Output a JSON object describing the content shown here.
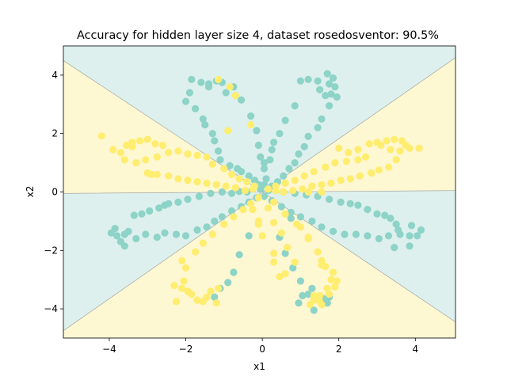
{
  "chart_data": {
    "type": "scatter",
    "title": "Accuracy for hidden layer size 4, dataset rosedosventor: 90.5%",
    "xlabel": "x1",
    "ylabel": "x2",
    "xlim": [
      -5.2,
      5.05
    ],
    "ylim": [
      -5.0,
      5.0
    ],
    "xticks": [
      -4,
      -2,
      0,
      2,
      4
    ],
    "yticks": [
      -4,
      -2,
      0,
      2,
      4
    ],
    "grid": false,
    "legend": "none",
    "colors": {
      "class_0": "#8dd3c7",
      "class_1": "#ffed6f",
      "region_0": "#ddf0ee",
      "region_1": "#fdf7d2",
      "boundary": "#999999"
    },
    "decision_regions": [
      {
        "class": 1,
        "polygon": [
          [
            -5.2,
            4.5
          ],
          [
            0,
            0
          ],
          [
            -5.2,
            -0.05
          ]
        ]
      },
      {
        "class": 1,
        "polygon": [
          [
            0,
            0
          ],
          [
            5.05,
            4.6
          ],
          [
            5.05,
            0.05
          ]
        ]
      },
      {
        "class": 1,
        "polygon": [
          [
            0,
            0
          ],
          [
            -5.2,
            -4.75
          ],
          [
            -5.2,
            -5.0
          ],
          [
            5.05,
            -5.0
          ],
          [
            5.05,
            -4.45
          ]
        ]
      }
    ],
    "series": [
      {
        "class": 0,
        "color": "#8dd3c7",
        "points": [
          [
            -1.85,
            3.85
          ],
          [
            -1.6,
            3.75
          ],
          [
            -1.4,
            3.7
          ],
          [
            -1.2,
            3.8
          ],
          [
            -1.05,
            3.75
          ],
          [
            -0.75,
            3.6
          ],
          [
            -0.95,
            3.4
          ],
          [
            -0.7,
            3.3
          ],
          [
            -1.4,
            3.6
          ],
          [
            -1.9,
            3.4
          ],
          [
            -2.0,
            3.1
          ],
          [
            -1.75,
            2.85
          ],
          [
            -1.55,
            2.5
          ],
          [
            -1.5,
            2.3
          ],
          [
            -1.3,
            2.0
          ],
          [
            -1.25,
            1.75
          ],
          [
            -1.15,
            1.4
          ],
          [
            -1.1,
            1.1
          ],
          [
            -0.85,
            0.9
          ],
          [
            -0.65,
            0.8
          ],
          [
            -0.55,
            0.7
          ],
          [
            -0.35,
            0.55
          ],
          [
            -0.2,
            0.4
          ],
          [
            -0.1,
            0.25
          ],
          [
            -0.05,
            0.1
          ],
          [
            -0.55,
            3.15
          ],
          [
            -0.3,
            2.6
          ],
          [
            -0.15,
            2.1
          ],
          [
            -0.1,
            1.6
          ],
          [
            -0.05,
            1.2
          ],
          [
            0.05,
            0.8
          ],
          [
            0.1,
            0.45
          ],
          [
            0.05,
            0.25
          ],
          [
            0.05,
            1.0
          ],
          [
            1.0,
            3.8
          ],
          [
            1.2,
            3.85
          ],
          [
            1.45,
            3.8
          ],
          [
            1.75,
            3.7
          ],
          [
            1.5,
            3.5
          ],
          [
            1.65,
            3.3
          ],
          [
            1.8,
            3.35
          ],
          [
            1.7,
            4.05
          ],
          [
            1.85,
            3.9
          ],
          [
            1.9,
            3.6
          ],
          [
            1.95,
            3.25
          ],
          [
            1.75,
            2.95
          ],
          [
            1.55,
            2.5
          ],
          [
            1.45,
            2.2
          ],
          [
            1.2,
            1.9
          ],
          [
            1.1,
            1.55
          ],
          [
            0.95,
            1.3
          ],
          [
            0.85,
            1.0
          ],
          [
            0.7,
            0.8
          ],
          [
            0.55,
            0.55
          ],
          [
            0.4,
            0.35
          ],
          [
            0.25,
            0.2
          ],
          [
            0.15,
            0.05
          ],
          [
            0.85,
            2.95
          ],
          [
            0.6,
            2.45
          ],
          [
            0.45,
            2.0
          ],
          [
            0.3,
            1.7
          ],
          [
            0.25,
            1.45
          ],
          [
            0.2,
            1.1
          ],
          [
            -3.8,
            -1.5
          ],
          [
            -3.6,
            -1.45
          ],
          [
            -3.5,
            -1.35
          ],
          [
            -3.7,
            -1.7
          ],
          [
            -3.6,
            -1.85
          ],
          [
            -3.3,
            -1.6
          ],
          [
            -3.05,
            -1.45
          ],
          [
            -2.75,
            -1.55
          ],
          [
            -2.55,
            -1.4
          ],
          [
            -2.25,
            -1.45
          ],
          [
            -2.0,
            -1.5
          ],
          [
            -1.7,
            -1.3
          ],
          [
            -1.45,
            -1.2
          ],
          [
            -1.25,
            -1.0
          ],
          [
            -1.05,
            -0.85
          ],
          [
            -0.8,
            -0.65
          ],
          [
            -0.55,
            -0.5
          ],
          [
            -0.35,
            -0.35
          ],
          [
            -0.15,
            -0.2
          ],
          [
            -3.35,
            -0.8
          ],
          [
            -3.15,
            -0.75
          ],
          [
            -2.95,
            -0.65
          ],
          [
            -2.7,
            -0.55
          ],
          [
            -2.55,
            -0.45
          ],
          [
            -2.45,
            -0.4
          ],
          [
            -2.2,
            -0.35
          ],
          [
            -1.95,
            -0.25
          ],
          [
            -1.65,
            -0.15
          ],
          [
            -1.35,
            -0.05
          ],
          [
            -1.05,
            0.0
          ],
          [
            -0.8,
            -0.05
          ],
          [
            -0.6,
            0.02
          ],
          [
            -0.4,
            0.0
          ],
          [
            -3.85,
            -1.25
          ],
          [
            -3.95,
            -1.4
          ],
          [
            3.0,
            -0.75
          ],
          [
            3.2,
            -0.8
          ],
          [
            3.35,
            -0.9
          ],
          [
            3.5,
            -1.1
          ],
          [
            3.55,
            -1.3
          ],
          [
            3.6,
            -1.45
          ],
          [
            3.85,
            -1.5
          ],
          [
            4.05,
            -1.5
          ],
          [
            4.15,
            -1.3
          ],
          [
            3.9,
            -1.15
          ],
          [
            3.3,
            -1.5
          ],
          [
            3.05,
            -1.6
          ],
          [
            2.75,
            -1.5
          ],
          [
            2.45,
            -1.45
          ],
          [
            2.15,
            -1.45
          ],
          [
            1.85,
            -1.35
          ],
          [
            1.55,
            -1.2
          ],
          [
            1.3,
            -1.0
          ],
          [
            1.0,
            -0.85
          ],
          [
            0.75,
            -0.7
          ],
          [
            0.5,
            -0.5
          ],
          [
            0.25,
            -0.3
          ],
          [
            0.05,
            -0.15
          ],
          [
            2.75,
            -0.6
          ],
          [
            2.5,
            -0.45
          ],
          [
            2.3,
            -0.4
          ],
          [
            2.05,
            -0.35
          ],
          [
            1.75,
            -0.25
          ],
          [
            1.45,
            -0.15
          ],
          [
            1.15,
            -0.1
          ],
          [
            0.85,
            -0.05
          ],
          [
            0.55,
            0.0
          ],
          [
            3.45,
            -1.9
          ],
          [
            3.85,
            -1.85
          ],
          [
            -0.35,
            -1.5
          ],
          [
            -0.6,
            -2.15
          ],
          [
            -0.75,
            -2.75
          ],
          [
            -0.9,
            -3.1
          ],
          [
            -1.1,
            -3.3
          ],
          [
            -1.25,
            -3.6
          ],
          [
            0.75,
            -0.9
          ],
          [
            0.45,
            -1.55
          ],
          [
            0.6,
            -2.1
          ],
          [
            0.8,
            -2.6
          ],
          [
            1.0,
            -3.05
          ],
          [
            1.2,
            -3.5
          ],
          [
            1.6,
            -3.65
          ],
          [
            1.7,
            -3.8
          ],
          [
            1.35,
            -4.05
          ],
          [
            0.95,
            -3.8
          ],
          [
            1.05,
            -3.55
          ],
          [
            1.75,
            -3.6
          ],
          [
            1.3,
            -3.3
          ]
        ]
      },
      {
        "class": 1,
        "color": "#ffed6f",
        "points": [
          [
            -4.2,
            1.92
          ],
          [
            -3.9,
            1.45
          ],
          [
            -3.7,
            1.35
          ],
          [
            -3.55,
            1.6
          ],
          [
            -3.4,
            1.7
          ],
          [
            -3.2,
            1.75
          ],
          [
            -3.0,
            1.8
          ],
          [
            -2.8,
            1.65
          ],
          [
            -2.6,
            1.6
          ],
          [
            -3.6,
            1.1
          ],
          [
            -3.3,
            1.0
          ],
          [
            -3.05,
            1.1
          ],
          [
            -2.75,
            1.2
          ],
          [
            -2.45,
            1.35
          ],
          [
            -2.2,
            1.4
          ],
          [
            -1.95,
            1.3
          ],
          [
            -1.7,
            1.25
          ],
          [
            -1.45,
            1.2
          ],
          [
            -1.3,
            0.95
          ],
          [
            -1.0,
            0.8
          ],
          [
            -0.8,
            0.6
          ],
          [
            -0.6,
            0.45
          ],
          [
            -0.4,
            0.35
          ],
          [
            -0.2,
            0.2
          ],
          [
            -3.0,
            0.65
          ],
          [
            -2.75,
            0.6
          ],
          [
            -2.45,
            0.55
          ],
          [
            -2.2,
            0.45
          ],
          [
            -1.95,
            0.4
          ],
          [
            -1.7,
            0.35
          ],
          [
            -1.45,
            0.3
          ],
          [
            -1.2,
            0.25
          ],
          [
            -0.95,
            0.2
          ],
          [
            -0.7,
            0.15
          ],
          [
            -0.45,
            0.05
          ],
          [
            -0.25,
            0.1
          ],
          [
            -0.9,
            2.1
          ],
          [
            -0.3,
            2.3
          ],
          [
            -3.4,
            1.55
          ],
          [
            -2.9,
            0.6
          ],
          [
            -1.15,
            3.85
          ],
          [
            -0.85,
            3.6
          ],
          [
            -0.7,
            3.3
          ],
          [
            2.0,
            1.5
          ],
          [
            2.25,
            1.35
          ],
          [
            2.5,
            1.45
          ],
          [
            2.8,
            1.65
          ],
          [
            3.0,
            1.7
          ],
          [
            3.25,
            1.75
          ],
          [
            3.45,
            1.8
          ],
          [
            3.65,
            1.75
          ],
          [
            3.85,
            1.5
          ],
          [
            4.1,
            1.5
          ],
          [
            3.6,
            1.4
          ],
          [
            3.35,
            1.45
          ],
          [
            3.1,
            1.6
          ],
          [
            2.7,
            1.2
          ],
          [
            2.5,
            1.1
          ],
          [
            2.2,
            1.05
          ],
          [
            1.9,
            1.0
          ],
          [
            1.65,
            0.85
          ],
          [
            1.35,
            0.7
          ],
          [
            1.1,
            0.55
          ],
          [
            0.85,
            0.4
          ],
          [
            0.6,
            0.3
          ],
          [
            0.35,
            0.2
          ],
          [
            0.15,
            0.1
          ],
          [
            3.3,
            0.85
          ],
          [
            3.05,
            0.75
          ],
          [
            2.85,
            0.65
          ],
          [
            2.55,
            0.55
          ],
          [
            2.3,
            0.45
          ],
          [
            2.05,
            0.4
          ],
          [
            1.8,
            0.3
          ],
          [
            1.55,
            0.25
          ],
          [
            1.3,
            0.2
          ],
          [
            1.05,
            0.1
          ],
          [
            0.8,
            0.05
          ],
          [
            0.55,
            0.0
          ],
          [
            0.35,
            0.05
          ],
          [
            3.5,
            1.1
          ],
          [
            3.75,
            1.6
          ],
          [
            1.55,
            0.0
          ],
          [
            1.2,
            0.0
          ],
          [
            -2.3,
            -3.2
          ],
          [
            -2.1,
            -3.3
          ],
          [
            -1.95,
            -3.4
          ],
          [
            -1.85,
            -3.5
          ],
          [
            -1.7,
            -3.7
          ],
          [
            -1.55,
            -3.75
          ],
          [
            -1.45,
            -3.6
          ],
          [
            -1.35,
            -3.4
          ],
          [
            -1.15,
            -3.3
          ],
          [
            -2.05,
            -3.05
          ],
          [
            -2.0,
            -2.6
          ],
          [
            -2.1,
            -2.35
          ],
          [
            -1.75,
            -2.05
          ],
          [
            -1.55,
            -1.75
          ],
          [
            -1.3,
            -1.45
          ],
          [
            -1.0,
            -1.1
          ],
          [
            -0.75,
            -0.85
          ],
          [
            -0.5,
            -0.6
          ],
          [
            -0.3,
            -0.4
          ],
          [
            -0.1,
            -0.2
          ],
          [
            -2.25,
            -3.75
          ],
          [
            -1.2,
            -3.8
          ],
          [
            -0.25,
            -0.6
          ],
          [
            -0.1,
            -1.1
          ],
          [
            0.0,
            -1.5
          ],
          [
            -0.1,
            -1.0
          ],
          [
            0.15,
            -0.55
          ],
          [
            0.3,
            -1.05
          ],
          [
            0.5,
            -1.4
          ],
          [
            0.65,
            -1.9
          ],
          [
            0.85,
            -2.4
          ],
          [
            0.6,
            -2.8
          ],
          [
            0.3,
            -2.4
          ],
          [
            0.3,
            -2.1
          ],
          [
            0.45,
            -2.9
          ],
          [
            1.0,
            -1.2
          ],
          [
            1.2,
            -1.6
          ],
          [
            1.45,
            -2.05
          ],
          [
            1.55,
            -2.35
          ],
          [
            1.65,
            -2.55
          ],
          [
            1.85,
            -2.75
          ],
          [
            1.8,
            -3.0
          ],
          [
            1.7,
            -3.3
          ],
          [
            1.5,
            -3.55
          ],
          [
            1.35,
            -3.7
          ],
          [
            1.25,
            -3.85
          ],
          [
            1.55,
            -3.85
          ],
          [
            1.75,
            -3.5
          ],
          [
            1.9,
            -3.25
          ],
          [
            1.95,
            -3.05
          ],
          [
            1.5,
            -3.75
          ],
          [
            1.35,
            -3.55
          ],
          [
            1.55,
            -2.5
          ],
          [
            1.2,
            -1.55
          ],
          [
            0.9,
            -1.1
          ],
          [
            0.6,
            -0.75
          ],
          [
            0.3,
            -0.35
          ]
        ]
      }
    ]
  }
}
